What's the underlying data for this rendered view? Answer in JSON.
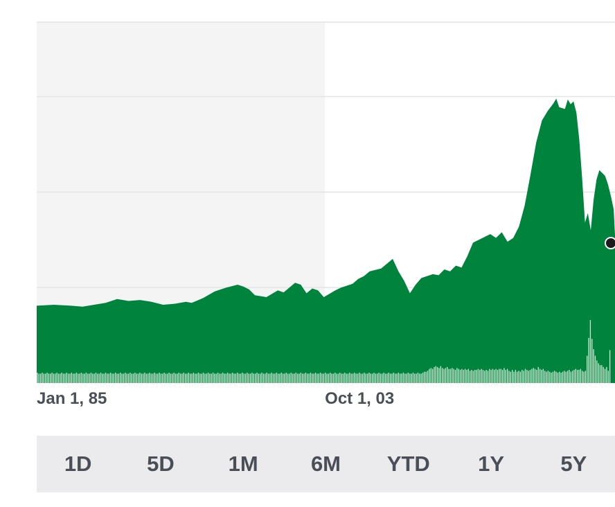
{
  "colors": {
    "area": "#00843d",
    "volume": "#d2ead8",
    "shaded_period": "#f4f4f5",
    "grid": "#e4e4e6",
    "marker": "#1b1b1b",
    "text": "#4a4f57",
    "range_bar_bg": "#ebebed"
  },
  "x_axis_labels": [
    "Jan 1, 85",
    "Oct 1, 03"
  ],
  "range_buttons": [
    "1D",
    "5D",
    "1M",
    "6M",
    "YTD",
    "1Y",
    "5Y"
  ],
  "chart_data": {
    "type": "area",
    "title": "",
    "xlabel": "",
    "ylabel": "",
    "x_start": "Jan 1, 85",
    "x_end": "present",
    "ylim": [
      0,
      3.78
    ],
    "y_gridlines": [
      1.0,
      2.0,
      3.0
    ],
    "y_tick_labels": [],
    "grid": true,
    "shaded_period": {
      "from": "Jan 1, 85",
      "to": "Oct 1, 03"
    },
    "last_value_marker": true,
    "price_series": [
      [
        0.0,
        0.81
      ],
      [
        0.03,
        0.82
      ],
      [
        0.06,
        0.81
      ],
      [
        0.08,
        0.8
      ],
      [
        0.1,
        0.82
      ],
      [
        0.12,
        0.84
      ],
      [
        0.14,
        0.88
      ],
      [
        0.16,
        0.86
      ],
      [
        0.18,
        0.87
      ],
      [
        0.2,
        0.85
      ],
      [
        0.22,
        0.82
      ],
      [
        0.24,
        0.83
      ],
      [
        0.26,
        0.85
      ],
      [
        0.27,
        0.84
      ],
      [
        0.29,
        0.89
      ],
      [
        0.31,
        0.96
      ],
      [
        0.33,
        1.0
      ],
      [
        0.35,
        1.03
      ],
      [
        0.36,
        1.01
      ],
      [
        0.37,
        0.98
      ],
      [
        0.38,
        0.92
      ],
      [
        0.4,
        0.9
      ],
      [
        0.42,
        0.97
      ],
      [
        0.43,
        0.95
      ],
      [
        0.45,
        1.05
      ],
      [
        0.46,
        1.03
      ],
      [
        0.47,
        0.94
      ],
      [
        0.48,
        0.99
      ],
      [
        0.49,
        0.97
      ],
      [
        0.5,
        0.9
      ],
      [
        0.52,
        0.97
      ],
      [
        0.53,
        1.0
      ],
      [
        0.55,
        1.04
      ],
      [
        0.56,
        1.09
      ],
      [
        0.57,
        1.12
      ],
      [
        0.58,
        1.17
      ],
      [
        0.6,
        1.2
      ],
      [
        0.62,
        1.3
      ],
      [
        0.63,
        1.17
      ],
      [
        0.64,
        1.07
      ],
      [
        0.65,
        0.94
      ],
      [
        0.66,
        1.03
      ],
      [
        0.67,
        1.1
      ],
      [
        0.68,
        1.12
      ],
      [
        0.69,
        1.14
      ],
      [
        0.7,
        1.13
      ],
      [
        0.71,
        1.19
      ],
      [
        0.72,
        1.17
      ],
      [
        0.73,
        1.23
      ],
      [
        0.74,
        1.21
      ],
      [
        0.75,
        1.33
      ],
      [
        0.76,
        1.47
      ],
      [
        0.78,
        1.53
      ],
      [
        0.79,
        1.56
      ],
      [
        0.8,
        1.52
      ],
      [
        0.81,
        1.58
      ],
      [
        0.82,
        1.48
      ],
      [
        0.83,
        1.52
      ],
      [
        0.84,
        1.64
      ],
      [
        0.85,
        1.86
      ],
      [
        0.86,
        2.18
      ],
      [
        0.87,
        2.52
      ],
      [
        0.88,
        2.75
      ],
      [
        0.89,
        2.85
      ],
      [
        0.9,
        2.93
      ],
      [
        0.905,
        2.98
      ],
      [
        0.91,
        2.89
      ],
      [
        0.92,
        2.87
      ],
      [
        0.925,
        2.97
      ],
      [
        0.93,
        2.92
      ],
      [
        0.935,
        2.95
      ],
      [
        0.94,
        2.83
      ],
      [
        0.945,
        2.55
      ],
      [
        0.95,
        2.15
      ],
      [
        0.955,
        1.68
      ],
      [
        0.96,
        1.78
      ],
      [
        0.965,
        1.6
      ],
      [
        0.97,
        1.92
      ],
      [
        0.975,
        2.13
      ],
      [
        0.98,
        2.23
      ],
      [
        0.99,
        2.17
      ],
      [
        0.995,
        2.08
      ],
      [
        1.0,
        1.96
      ],
      [
        1.005,
        1.82
      ],
      [
        1.01,
        1.55
      ]
    ],
    "volume_series": [
      0.11,
      0.1,
      0.1,
      0.11,
      0.1,
      0.1,
      0.11,
      0.1,
      0.1,
      0.11,
      0.1,
      0.1,
      0.11,
      0.1,
      0.1,
      0.11,
      0.1,
      0.1,
      0.11,
      0.1,
      0.1,
      0.11,
      0.1,
      0.1,
      0.11,
      0.1,
      0.1,
      0.11,
      0.1,
      0.1,
      0.11,
      0.1,
      0.1,
      0.11,
      0.1,
      0.1,
      0.11,
      0.1,
      0.1,
      0.11,
      0.1,
      0.1,
      0.11,
      0.1,
      0.1,
      0.11,
      0.1,
      0.1,
      0.11,
      0.1,
      0.1,
      0.11,
      0.1,
      0.1,
      0.11,
      0.1,
      0.1,
      0.11,
      0.1,
      0.1,
      0.11,
      0.1,
      0.1,
      0.11,
      0.1,
      0.1,
      0.11,
      0.1,
      0.1,
      0.11,
      0.1,
      0.1,
      0.11,
      0.1,
      0.1,
      0.11,
      0.1,
      0.1,
      0.11,
      0.1,
      0.1,
      0.11,
      0.1,
      0.1,
      0.11,
      0.1,
      0.1,
      0.11,
      0.1,
      0.1,
      0.11,
      0.1,
      0.1,
      0.11,
      0.1,
      0.1,
      0.11,
      0.1,
      0.1,
      0.11,
      0.1,
      0.1,
      0.11,
      0.1,
      0.1,
      0.11,
      0.1,
      0.1,
      0.11,
      0.1,
      0.1,
      0.11,
      0.1,
      0.1,
      0.11,
      0.1,
      0.1,
      0.11,
      0.1,
      0.1,
      0.11,
      0.1,
      0.1,
      0.11,
      0.1,
      0.1,
      0.11,
      0.1,
      0.1,
      0.11,
      0.1,
      0.1,
      0.11,
      0.1,
      0.1,
      0.11,
      0.1,
      0.1,
      0.11,
      0.1,
      0.1,
      0.11,
      0.1,
      0.1,
      0.11,
      0.1,
      0.1,
      0.11,
      0.1,
      0.1,
      0.11,
      0.1,
      0.1,
      0.11,
      0.1,
      0.1,
      0.11,
      0.1,
      0.1,
      0.11,
      0.1,
      0.1,
      0.11,
      0.1,
      0.1,
      0.11,
      0.1,
      0.1,
      0.11,
      0.1,
      0.1,
      0.11,
      0.1,
      0.1,
      0.11,
      0.1,
      0.1,
      0.11,
      0.1,
      0.1,
      0.11,
      0.1,
      0.1,
      0.11,
      0.1,
      0.1,
      0.11,
      0.1,
      0.1,
      0.11,
      0.1,
      0.1,
      0.11,
      0.1,
      0.1,
      0.11,
      0.1,
      0.1,
      0.11,
      0.1,
      0.1,
      0.11,
      0.1,
      0.1,
      0.11,
      0.1,
      0.1,
      0.11,
      0.1,
      0.1,
      0.11,
      0.1,
      0.1,
      0.11,
      0.1,
      0.1,
      0.11,
      0.1,
      0.1,
      0.11,
      0.1,
      0.1,
      0.11,
      0.1,
      0.1,
      0.11,
      0.1,
      0.1,
      0.11,
      0.1,
      0.1,
      0.11,
      0.1,
      0.1,
      0.11,
      0.1,
      0.1,
      0.11,
      0.12,
      0.12,
      0.13,
      0.15,
      0.16,
      0.15,
      0.17,
      0.18,
      0.17,
      0.16,
      0.18,
      0.16,
      0.15,
      0.16,
      0.17,
      0.15,
      0.15,
      0.16,
      0.15,
      0.14,
      0.16,
      0.15,
      0.14,
      0.15,
      0.14,
      0.15,
      0.14,
      0.15,
      0.13,
      0.14,
      0.13,
      0.14,
      0.14,
      0.15,
      0.14,
      0.15,
      0.14,
      0.13,
      0.14,
      0.13,
      0.15,
      0.14,
      0.15,
      0.14,
      0.15,
      0.14,
      0.15,
      0.15,
      0.14,
      0.16,
      0.14,
      0.15,
      0.13,
      0.12,
      0.14,
      0.12,
      0.14,
      0.12,
      0.13,
      0.12,
      0.14,
      0.13,
      0.15,
      0.14,
      0.13,
      0.14,
      0.15,
      0.16,
      0.15,
      0.14,
      0.17,
      0.15,
      0.14,
      0.15,
      0.13,
      0.12,
      0.13,
      0.12,
      0.11,
      0.12,
      0.13,
      0.12,
      0.11,
      0.12,
      0.11,
      0.12,
      0.13,
      0.12,
      0.13,
      0.14,
      0.12,
      0.13,
      0.14,
      0.15,
      0.14,
      0.14,
      0.15,
      0.13,
      0.12,
      0.13,
      0.29,
      0.48,
      0.67,
      0.47,
      0.36,
      0.29,
      0.24,
      0.21,
      0.19,
      0.19,
      0.17,
      0.15,
      0.17,
      0.13,
      0.35
    ],
    "volume_max": 0.7
  }
}
